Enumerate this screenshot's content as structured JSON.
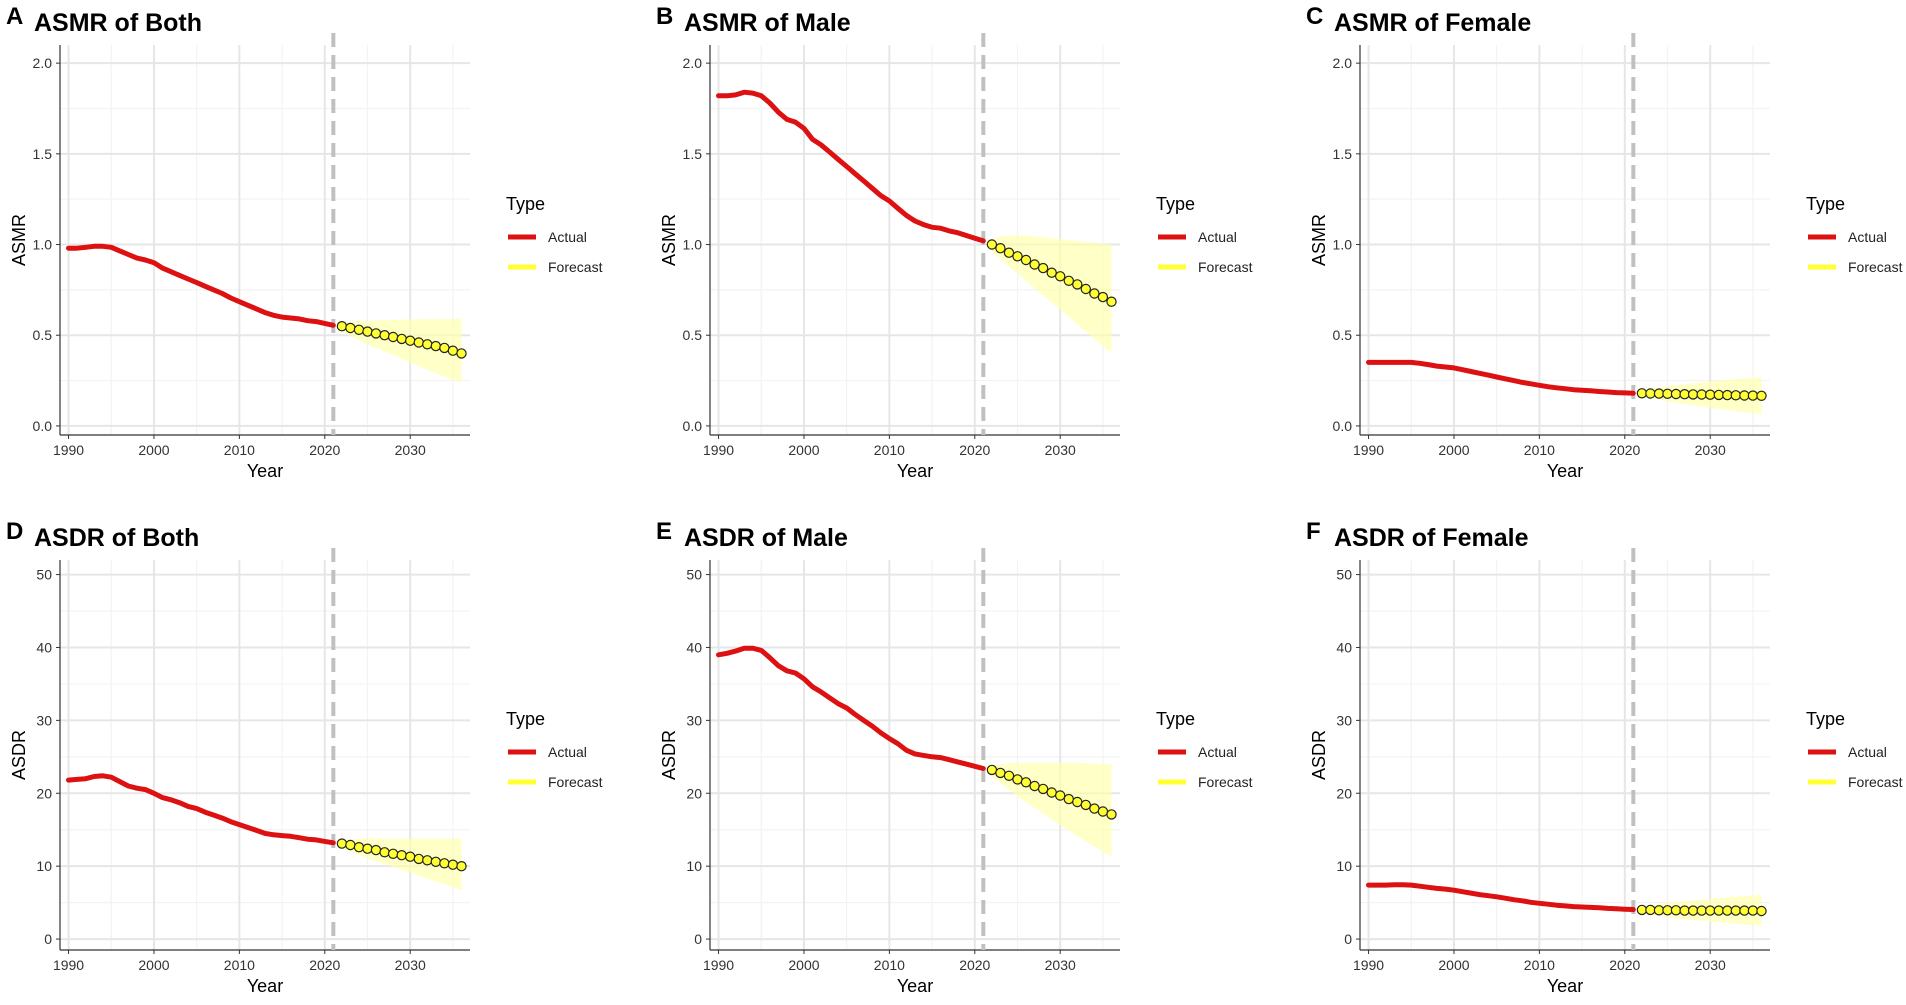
{
  "figure": {
    "colors": {
      "actual": "#dd1111",
      "forecast": "#ffff33",
      "band": "#ffffaa",
      "marker_stroke": "#222222",
      "grid_major": "#e6e6e6",
      "grid_minor": "#f3f3f3",
      "vline": "#c0c0c0"
    },
    "divider_year": 2021,
    "legend": {
      "title": "Type",
      "actual_label": "Actual",
      "forecast_label": "Forecast"
    }
  },
  "chart_data": [
    {
      "type": "line",
      "id": "A",
      "letter": "A",
      "title": "ASMR of Both",
      "xlabel": "Year",
      "ylabel": "ASMR",
      "xlim": [
        1989,
        2037
      ],
      "ylim": [
        -0.05,
        2.1
      ],
      "xticks": [
        1990,
        2000,
        2010,
        2020,
        2030
      ],
      "xtick_labels": [
        "1990",
        "2000",
        "2010",
        "2020",
        "2030"
      ],
      "yticks": [
        0,
        0.5,
        1,
        1.5,
        2
      ],
      "ytick_labels": [
        "0.0",
        "0.5",
        "1.0",
        "1.5",
        "2.0"
      ],
      "actual": {
        "years": [
          1990,
          1991,
          1992,
          1993,
          1994,
          1995,
          1996,
          1997,
          1998,
          1999,
          2000,
          2001,
          2002,
          2003,
          2004,
          2005,
          2006,
          2007,
          2008,
          2009,
          2010,
          2011,
          2012,
          2013,
          2014,
          2015,
          2016,
          2017,
          2018,
          2019,
          2020,
          2021
        ],
        "values": [
          0.98,
          0.98,
          0.985,
          0.99,
          0.99,
          0.985,
          0.965,
          0.945,
          0.925,
          0.915,
          0.9,
          0.87,
          0.85,
          0.83,
          0.81,
          0.79,
          0.77,
          0.75,
          0.73,
          0.705,
          0.685,
          0.665,
          0.645,
          0.625,
          0.61,
          0.6,
          0.595,
          0.59,
          0.58,
          0.575,
          0.565,
          0.555
        ]
      },
      "forecast": {
        "years": [
          2022,
          2023,
          2024,
          2025,
          2026,
          2027,
          2028,
          2029,
          2030,
          2031,
          2032,
          2033,
          2034,
          2035,
          2036
        ],
        "values": [
          0.55,
          0.54,
          0.53,
          0.52,
          0.51,
          0.5,
          0.49,
          0.48,
          0.47,
          0.46,
          0.45,
          0.44,
          0.43,
          0.415,
          0.4
        ],
        "lower": [
          0.52,
          0.495,
          0.47,
          0.45,
          0.43,
          0.41,
          0.39,
          0.37,
          0.35,
          0.33,
          0.31,
          0.29,
          0.27,
          0.255,
          0.24
        ],
        "upper": [
          0.57,
          0.575,
          0.578,
          0.58,
          0.582,
          0.584,
          0.585,
          0.586,
          0.587,
          0.588,
          0.588,
          0.589,
          0.589,
          0.59,
          0.59
        ]
      }
    },
    {
      "type": "line",
      "id": "B",
      "letter": "B",
      "title": "ASMR of Male",
      "xlabel": "Year",
      "ylabel": "ASMR",
      "xlim": [
        1989,
        2037
      ],
      "ylim": [
        -0.05,
        2.1
      ],
      "xticks": [
        1990,
        2000,
        2010,
        2020,
        2030
      ],
      "xtick_labels": [
        "1990",
        "2000",
        "2010",
        "2020",
        "2030"
      ],
      "yticks": [
        0,
        0.5,
        1,
        1.5,
        2
      ],
      "ytick_labels": [
        "0.0",
        "0.5",
        "1.0",
        "1.5",
        "2.0"
      ],
      "actual": {
        "years": [
          1990,
          1991,
          1992,
          1993,
          1994,
          1995,
          1996,
          1997,
          1998,
          1999,
          2000,
          2001,
          2002,
          2003,
          2004,
          2005,
          2006,
          2007,
          2008,
          2009,
          2010,
          2011,
          2012,
          2013,
          2014,
          2015,
          2016,
          2017,
          2018,
          2019,
          2020,
          2021
        ],
        "values": [
          1.82,
          1.82,
          1.825,
          1.84,
          1.835,
          1.82,
          1.78,
          1.73,
          1.69,
          1.675,
          1.64,
          1.58,
          1.55,
          1.51,
          1.47,
          1.43,
          1.39,
          1.35,
          1.31,
          1.27,
          1.24,
          1.2,
          1.16,
          1.13,
          1.11,
          1.095,
          1.09,
          1.075,
          1.065,
          1.05,
          1.035,
          1.02
        ]
      },
      "forecast": {
        "years": [
          2022,
          2023,
          2024,
          2025,
          2026,
          2027,
          2028,
          2029,
          2030,
          2031,
          2032,
          2033,
          2034,
          2035,
          2036
        ],
        "values": [
          1.0,
          0.98,
          0.955,
          0.935,
          0.915,
          0.89,
          0.87,
          0.845,
          0.825,
          0.8,
          0.78,
          0.755,
          0.73,
          0.71,
          0.685
        ],
        "lower": [
          0.96,
          0.92,
          0.88,
          0.84,
          0.8,
          0.76,
          0.72,
          0.68,
          0.64,
          0.6,
          0.56,
          0.52,
          0.48,
          0.44,
          0.4
        ],
        "upper": [
          1.03,
          1.045,
          1.05,
          1.05,
          1.048,
          1.045,
          1.04,
          1.035,
          1.03,
          1.025,
          1.02,
          1.015,
          1.01,
          1.005,
          1.0
        ]
      }
    },
    {
      "type": "line",
      "id": "C",
      "letter": "C",
      "title": "ASMR of Female",
      "xlabel": "Year",
      "ylabel": "ASMR",
      "xlim": [
        1989,
        2037
      ],
      "ylim": [
        -0.05,
        2.1
      ],
      "xticks": [
        1990,
        2000,
        2010,
        2020,
        2030
      ],
      "xtick_labels": [
        "1990",
        "2000",
        "2010",
        "2020",
        "2030"
      ],
      "yticks": [
        0,
        0.5,
        1,
        1.5,
        2
      ],
      "ytick_labels": [
        "0.0",
        "0.5",
        "1.0",
        "1.5",
        "2.0"
      ],
      "actual": {
        "years": [
          1990,
          1991,
          1992,
          1993,
          1994,
          1995,
          1996,
          1997,
          1998,
          1999,
          2000,
          2001,
          2002,
          2003,
          2004,
          2005,
          2006,
          2007,
          2008,
          2009,
          2010,
          2011,
          2012,
          2013,
          2014,
          2015,
          2016,
          2017,
          2018,
          2019,
          2020,
          2021
        ],
        "values": [
          0.35,
          0.35,
          0.35,
          0.35,
          0.35,
          0.35,
          0.345,
          0.338,
          0.33,
          0.325,
          0.32,
          0.31,
          0.3,
          0.29,
          0.28,
          0.27,
          0.26,
          0.25,
          0.24,
          0.232,
          0.224,
          0.216,
          0.21,
          0.205,
          0.2,
          0.197,
          0.194,
          0.19,
          0.187,
          0.184,
          0.182,
          0.18
        ]
      },
      "forecast": {
        "years": [
          2022,
          2023,
          2024,
          2025,
          2026,
          2027,
          2028,
          2029,
          2030,
          2031,
          2032,
          2033,
          2034,
          2035,
          2036
        ],
        "values": [
          0.18,
          0.179,
          0.178,
          0.177,
          0.176,
          0.175,
          0.174,
          0.173,
          0.172,
          0.171,
          0.17,
          0.169,
          0.168,
          0.167,
          0.166
        ],
        "lower": [
          0.165,
          0.155,
          0.145,
          0.135,
          0.128,
          0.121,
          0.114,
          0.107,
          0.1,
          0.093,
          0.087,
          0.081,
          0.075,
          0.07,
          0.065
        ],
        "upper": [
          0.195,
          0.205,
          0.212,
          0.219,
          0.225,
          0.23,
          0.235,
          0.24,
          0.245,
          0.25,
          0.254,
          0.258,
          0.262,
          0.266,
          0.27
        ]
      }
    },
    {
      "type": "line",
      "id": "D",
      "letter": "D",
      "title": "ASDR of Both",
      "xlabel": "Year",
      "ylabel": "ASDR",
      "xlim": [
        1989,
        2037
      ],
      "ylim": [
        -1.5,
        52
      ],
      "xticks": [
        1990,
        2000,
        2010,
        2020,
        2030
      ],
      "xtick_labels": [
        "1990",
        "2000",
        "2010",
        "2020",
        "2030"
      ],
      "yticks": [
        0,
        10,
        20,
        30,
        40,
        50
      ],
      "ytick_labels": [
        "0",
        "10",
        "20",
        "30",
        "40",
        "50"
      ],
      "actual": {
        "years": [
          1990,
          1991,
          1992,
          1993,
          1994,
          1995,
          1996,
          1997,
          1998,
          1999,
          2000,
          2001,
          2002,
          2003,
          2004,
          2005,
          2006,
          2007,
          2008,
          2009,
          2010,
          2011,
          2012,
          2013,
          2014,
          2015,
          2016,
          2017,
          2018,
          2019,
          2020,
          2021
        ],
        "values": [
          21.8,
          21.9,
          22.0,
          22.3,
          22.4,
          22.2,
          21.6,
          21.0,
          20.7,
          20.5,
          20.0,
          19.4,
          19.1,
          18.7,
          18.2,
          17.9,
          17.4,
          17.0,
          16.6,
          16.1,
          15.7,
          15.3,
          14.9,
          14.5,
          14.3,
          14.2,
          14.1,
          13.9,
          13.7,
          13.6,
          13.4,
          13.2
        ]
      },
      "forecast": {
        "years": [
          2022,
          2023,
          2024,
          2025,
          2026,
          2027,
          2028,
          2029,
          2030,
          2031,
          2032,
          2033,
          2034,
          2035,
          2036
        ],
        "values": [
          13.1,
          12.9,
          12.6,
          12.4,
          12.2,
          11.9,
          11.7,
          11.5,
          11.3,
          11.0,
          10.8,
          10.6,
          10.4,
          10.2,
          10.0
        ],
        "lower": [
          12.5,
          12.0,
          11.5,
          11.1,
          10.7,
          10.3,
          9.9,
          9.5,
          9.1,
          8.7,
          8.3,
          7.9,
          7.5,
          7.1,
          6.7
        ],
        "upper": [
          13.6,
          13.7,
          13.8,
          13.8,
          13.8,
          13.8,
          13.8,
          13.8,
          13.8,
          13.8,
          13.8,
          13.8,
          13.8,
          13.8,
          13.8
        ]
      }
    },
    {
      "type": "line",
      "id": "E",
      "letter": "E",
      "title": "ASDR of Male",
      "xlabel": "Year",
      "ylabel": "ASDR",
      "xlim": [
        1989,
        2037
      ],
      "ylim": [
        -1.5,
        52
      ],
      "xticks": [
        1990,
        2000,
        2010,
        2020,
        2030
      ],
      "xtick_labels": [
        "1990",
        "2000",
        "2010",
        "2020",
        "2030"
      ],
      "yticks": [
        0,
        10,
        20,
        30,
        40,
        50
      ],
      "ytick_labels": [
        "0",
        "10",
        "20",
        "30",
        "40",
        "50"
      ],
      "actual": {
        "years": [
          1990,
          1991,
          1992,
          1993,
          1994,
          1995,
          1996,
          1997,
          1998,
          1999,
          2000,
          2001,
          2002,
          2003,
          2004,
          2005,
          2006,
          2007,
          2008,
          2009,
          2010,
          2011,
          2012,
          2013,
          2014,
          2015,
          2016,
          2017,
          2018,
          2019,
          2020,
          2021
        ],
        "values": [
          39.0,
          39.2,
          39.5,
          39.9,
          39.9,
          39.6,
          38.6,
          37.5,
          36.8,
          36.5,
          35.7,
          34.6,
          33.9,
          33.1,
          32.3,
          31.7,
          30.8,
          30.0,
          29.2,
          28.3,
          27.5,
          26.8,
          25.9,
          25.4,
          25.2,
          25.0,
          24.9,
          24.6,
          24.3,
          24.0,
          23.7,
          23.4
        ]
      },
      "forecast": {
        "years": [
          2022,
          2023,
          2024,
          2025,
          2026,
          2027,
          2028,
          2029,
          2030,
          2031,
          2032,
          2033,
          2034,
          2035,
          2036
        ],
        "values": [
          23.2,
          22.8,
          22.4,
          21.9,
          21.5,
          21.0,
          20.6,
          20.1,
          19.7,
          19.2,
          18.8,
          18.4,
          17.9,
          17.5,
          17.1
        ],
        "lower": [
          22.3,
          21.4,
          20.5,
          19.6,
          18.8,
          18.0,
          17.2,
          16.4,
          15.6,
          14.9,
          14.1,
          13.4,
          12.7,
          12.0,
          11.3
        ],
        "upper": [
          23.8,
          24.0,
          24.1,
          24.2,
          24.2,
          24.2,
          24.2,
          24.2,
          24.2,
          24.2,
          24.2,
          24.1,
          24.1,
          24.0,
          24.0
        ]
      }
    },
    {
      "type": "line",
      "id": "F",
      "letter": "F",
      "title": "ASDR of Female",
      "xlabel": "Year",
      "ylabel": "ASDR",
      "xlim": [
        1989,
        2037
      ],
      "ylim": [
        -1.5,
        52
      ],
      "xticks": [
        1990,
        2000,
        2010,
        2020,
        2030
      ],
      "xtick_labels": [
        "1990",
        "2000",
        "2010",
        "2020",
        "2030"
      ],
      "yticks": [
        0,
        10,
        20,
        30,
        40,
        50
      ],
      "ytick_labels": [
        "0",
        "10",
        "20",
        "30",
        "40",
        "50"
      ],
      "actual": {
        "years": [
          1990,
          1991,
          1992,
          1993,
          1994,
          1995,
          1996,
          1997,
          1998,
          1999,
          2000,
          2001,
          2002,
          2003,
          2004,
          2005,
          2006,
          2007,
          2008,
          2009,
          2010,
          2011,
          2012,
          2013,
          2014,
          2015,
          2016,
          2017,
          2018,
          2019,
          2020,
          2021
        ],
        "values": [
          7.4,
          7.4,
          7.4,
          7.45,
          7.45,
          7.4,
          7.25,
          7.1,
          6.95,
          6.85,
          6.7,
          6.5,
          6.3,
          6.1,
          5.95,
          5.8,
          5.6,
          5.4,
          5.25,
          5.05,
          4.9,
          4.78,
          4.65,
          4.55,
          4.45,
          4.4,
          4.35,
          4.3,
          4.2,
          4.15,
          4.1,
          4.05
        ]
      },
      "forecast": {
        "years": [
          2022,
          2023,
          2024,
          2025,
          2026,
          2027,
          2028,
          2029,
          2030,
          2031,
          2032,
          2033,
          2034,
          2035,
          2036
        ],
        "values": [
          4.0,
          4.0,
          3.95,
          3.95,
          3.95,
          3.9,
          3.9,
          3.9,
          3.9,
          3.9,
          3.9,
          3.9,
          3.9,
          3.9,
          3.85
        ],
        "lower": [
          3.7,
          3.4,
          3.2,
          3.0,
          2.85,
          2.7,
          2.6,
          2.5,
          2.4,
          2.3,
          2.2,
          2.1,
          2.0,
          1.9,
          1.8
        ],
        "upper": [
          4.3,
          4.6,
          4.8,
          5.0,
          5.1,
          5.2,
          5.3,
          5.4,
          5.5,
          5.6,
          5.7,
          5.8,
          5.9,
          6.0,
          6.1
        ]
      }
    }
  ]
}
